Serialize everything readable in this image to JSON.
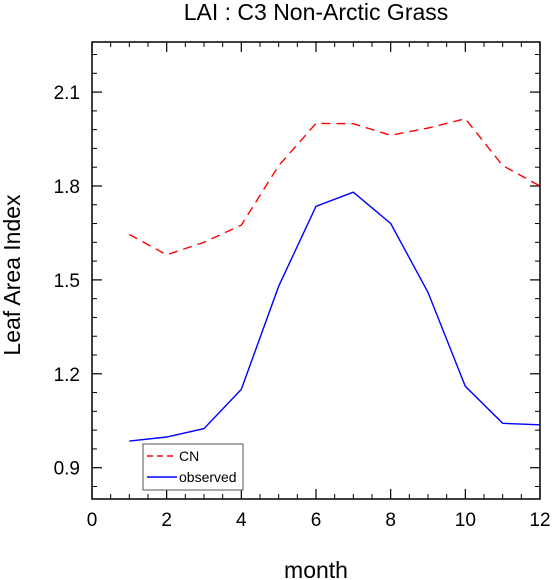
{
  "chart_data": {
    "type": "line",
    "title": "LAI : C3 Non-Arctic Grass",
    "xlabel": "month",
    "ylabel": "Leaf Area Index",
    "xlim": [
      0,
      12
    ],
    "ylim": [
      0.8,
      2.26
    ],
    "xticks": [
      0,
      2,
      4,
      6,
      8,
      10,
      12
    ],
    "yticks": [
      0.9,
      1.2,
      1.5,
      1.8,
      2.1
    ],
    "ytick_labels": [
      "0.9",
      "1.2",
      "1.5",
      "1.8",
      "2.1"
    ],
    "grid": false,
    "legend_position": "bottom-left",
    "series": [
      {
        "name": "CN",
        "color": "#ff0000",
        "style": "dashed",
        "x": [
          1,
          2,
          3,
          4,
          5,
          6,
          7,
          8,
          9,
          10,
          11,
          12
        ],
        "values": [
          1.645,
          1.58,
          1.62,
          1.675,
          1.865,
          2.0,
          1.999,
          1.962,
          1.985,
          2.015,
          1.865,
          1.8
        ]
      },
      {
        "name": "observed",
        "color": "#0000ff",
        "style": "solid",
        "x": [
          1,
          2,
          3,
          4,
          5,
          6,
          7,
          8,
          9,
          10,
          11,
          12
        ],
        "values": [
          0.985,
          0.998,
          1.025,
          1.15,
          1.48,
          1.735,
          1.78,
          1.68,
          1.46,
          1.16,
          1.042,
          1.037
        ]
      }
    ]
  }
}
